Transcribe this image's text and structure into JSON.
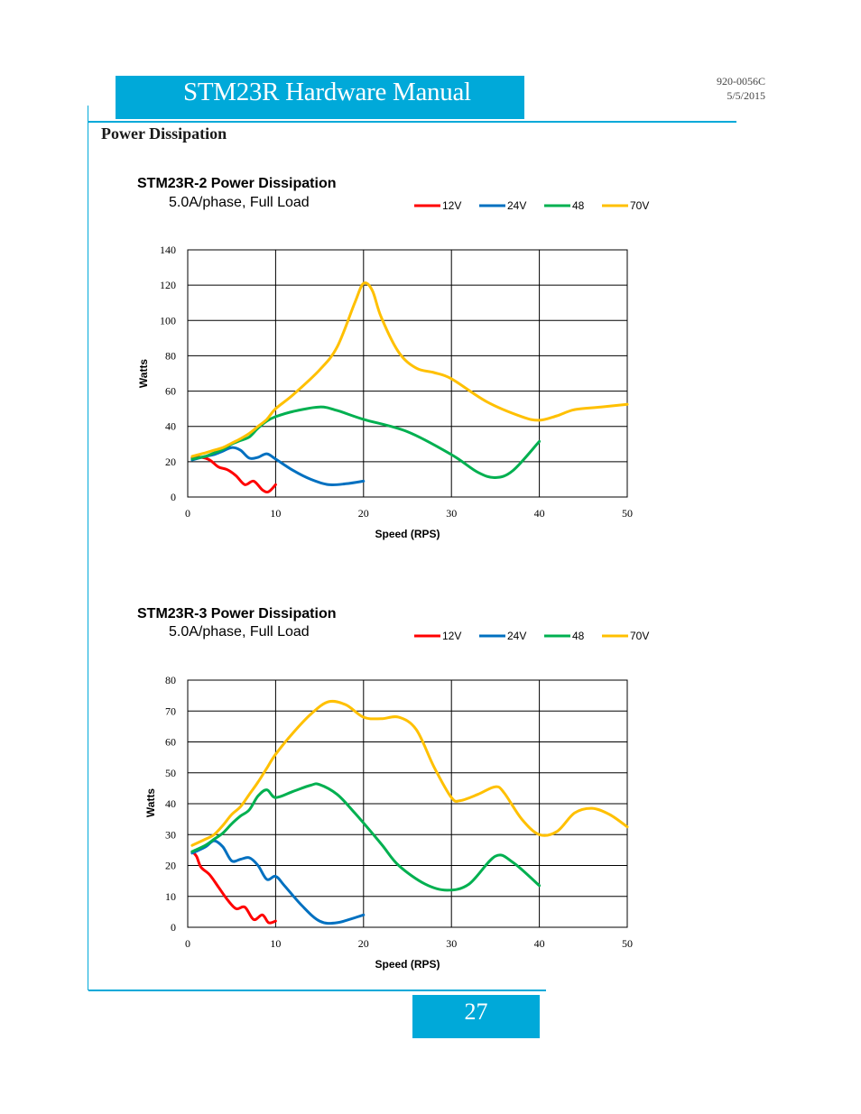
{
  "header": {
    "title": "STM23R Hardware Manual",
    "doc_number": "920-0056C",
    "doc_date": "5/5/2015"
  },
  "section": {
    "title": "Power Dissipation"
  },
  "footer": {
    "page_number": "27"
  },
  "colors": {
    "brand": "#00a9d9",
    "grid": "#000000"
  },
  "chart_data": [
    {
      "type": "line",
      "title": "STM23R-2 Power Dissipation",
      "subtitle": "5.0A/phase, Full Load",
      "xlabel": "Speed (RPS)",
      "ylabel": "Watts",
      "xlim": [
        0,
        50
      ],
      "ylim": [
        0,
        140
      ],
      "xticks": [
        0,
        10,
        20,
        30,
        40,
        50
      ],
      "yticks": [
        0,
        20,
        40,
        60,
        80,
        100,
        120,
        140
      ],
      "legend": "top",
      "series": [
        {
          "name": "12V",
          "color": "#ff0000",
          "points": [
            [
              0.5,
              22
            ],
            [
              1.5,
              22.5
            ],
            [
              2.5,
              21
            ],
            [
              3.5,
              17
            ],
            [
              4.5,
              15.5
            ],
            [
              5.5,
              12
            ],
            [
              6.5,
              7
            ],
            [
              7.5,
              9
            ],
            [
              8.5,
              4
            ],
            [
              9.2,
              3
            ],
            [
              10,
              7
            ]
          ]
        },
        {
          "name": "24V",
          "color": "#0070c0",
          "points": [
            [
              0.5,
              21
            ],
            [
              2,
              23
            ],
            [
              3,
              24
            ],
            [
              4,
              26
            ],
            [
              5,
              28
            ],
            [
              6,
              26.5
            ],
            [
              7,
              22
            ],
            [
              8,
              22.5
            ],
            [
              9,
              24.5
            ],
            [
              10,
              21.5
            ],
            [
              12,
              15
            ],
            [
              14,
              10
            ],
            [
              16,
              7
            ],
            [
              18,
              7.5
            ],
            [
              20,
              9
            ]
          ]
        },
        {
          "name": "48",
          "color": "#00b050",
          "points": [
            [
              0.5,
              21.5
            ],
            [
              2,
              23
            ],
            [
              3,
              25
            ],
            [
              4,
              27
            ],
            [
              5,
              30
            ],
            [
              6,
              32
            ],
            [
              7,
              34
            ],
            [
              8,
              39
            ],
            [
              9,
              43
            ],
            [
              10,
              45.5
            ],
            [
              12,
              48.5
            ],
            [
              15,
              51
            ],
            [
              17,
              49
            ],
            [
              20,
              44
            ],
            [
              25,
              37
            ],
            [
              30,
              24
            ],
            [
              33,
              14
            ],
            [
              35,
              11
            ],
            [
              37,
              15
            ],
            [
              40,
              31.5
            ]
          ]
        },
        {
          "name": "70V",
          "color": "#ffc000",
          "points": [
            [
              0.5,
              23
            ],
            [
              2,
              25
            ],
            [
              3,
              26.5
            ],
            [
              4,
              28
            ],
            [
              5,
              30.5
            ],
            [
              6,
              33
            ],
            [
              7,
              36
            ],
            [
              8,
              40
            ],
            [
              9,
              44
            ],
            [
              10,
              50
            ],
            [
              12,
              58
            ],
            [
              15,
              72
            ],
            [
              17,
              85
            ],
            [
              19,
              110
            ],
            [
              20,
              121
            ],
            [
              21,
              117
            ],
            [
              22,
              102
            ],
            [
              24,
              82
            ],
            [
              26,
              73
            ],
            [
              28,
              70.5
            ],
            [
              30,
              67
            ],
            [
              34,
              54
            ],
            [
              38,
              45.5
            ],
            [
              40,
              43.5
            ],
            [
              42,
              46
            ],
            [
              44,
              49.5
            ],
            [
              47,
              51
            ],
            [
              50,
              52.5
            ]
          ]
        }
      ]
    },
    {
      "type": "line",
      "title": "STM23R-3 Power Dissipation",
      "subtitle": "5.0A/phase, Full Load",
      "xlabel": "Speed (RPS)",
      "ylabel": "Watts",
      "xlim": [
        0,
        50
      ],
      "ylim": [
        0,
        80
      ],
      "xticks": [
        0,
        10,
        20,
        30,
        40,
        50
      ],
      "yticks": [
        0,
        10,
        20,
        30,
        40,
        50,
        60,
        70,
        80
      ],
      "legend": "top",
      "series": [
        {
          "name": "12V",
          "color": "#ff0000",
          "points": [
            [
              0.5,
              24.5
            ],
            [
              1,
              23
            ],
            [
              1.5,
              19.5
            ],
            [
              2.5,
              17
            ],
            [
              3.5,
              13
            ],
            [
              4.5,
              9
            ],
            [
              5.5,
              6
            ],
            [
              6.5,
              6.5
            ],
            [
              7.5,
              2.5
            ],
            [
              8.5,
              4
            ],
            [
              9.2,
              1.5
            ],
            [
              10,
              2
            ]
          ]
        },
        {
          "name": "24V",
          "color": "#0070c0",
          "points": [
            [
              0.5,
              24
            ],
            [
              2,
              26
            ],
            [
              3,
              28
            ],
            [
              4,
              26
            ],
            [
              5,
              21.5
            ],
            [
              6,
              22
            ],
            [
              7,
              22.5
            ],
            [
              8,
              20
            ],
            [
              9,
              15.5
            ],
            [
              10,
              16.5
            ],
            [
              11,
              13.5
            ],
            [
              13,
              7
            ],
            [
              15,
              2
            ],
            [
              17,
              1.5
            ],
            [
              20,
              4
            ]
          ]
        },
        {
          "name": "48",
          "color": "#00b050",
          "points": [
            [
              0.5,
              24.5
            ],
            [
              2,
              26.5
            ],
            [
              3,
              28.5
            ],
            [
              4,
              30.5
            ],
            [
              5,
              33.5
            ],
            [
              6,
              36
            ],
            [
              7,
              38
            ],
            [
              8,
              42.5
            ],
            [
              9,
              44.5
            ],
            [
              10,
              42
            ],
            [
              12,
              44
            ],
            [
              14,
              46
            ],
            [
              15,
              46.2
            ],
            [
              17,
              43
            ],
            [
              19,
              37
            ],
            [
              22,
              27
            ],
            [
              24,
              20
            ],
            [
              27,
              14
            ],
            [
              29.5,
              12
            ],
            [
              32,
              14
            ],
            [
              35,
              23
            ],
            [
              37,
              21
            ],
            [
              40,
              13.5
            ]
          ]
        },
        {
          "name": "70V",
          "color": "#ffc000",
          "points": [
            [
              0.5,
              26.5
            ],
            [
              2,
              28.5
            ],
            [
              3,
              30
            ],
            [
              4,
              33
            ],
            [
              5,
              36.5
            ],
            [
              6,
              39
            ],
            [
              7,
              43
            ],
            [
              8,
              47
            ],
            [
              9,
              51.5
            ],
            [
              10,
              56
            ],
            [
              12,
              63
            ],
            [
              14,
              69
            ],
            [
              16,
              73
            ],
            [
              18,
              72
            ],
            [
              20,
              68
            ],
            [
              22,
              67.5
            ],
            [
              24,
              68
            ],
            [
              26,
              64
            ],
            [
              28,
              52
            ],
            [
              30,
              42
            ],
            [
              31,
              41
            ],
            [
              33,
              43
            ],
            [
              35,
              45.5
            ],
            [
              36,
              43.5
            ],
            [
              38,
              35
            ],
            [
              40,
              30
            ],
            [
              42,
              31
            ],
            [
              44,
              37
            ],
            [
              46,
              38.5
            ],
            [
              48,
              36.5
            ],
            [
              50,
              32.5
            ]
          ]
        }
      ]
    }
  ]
}
